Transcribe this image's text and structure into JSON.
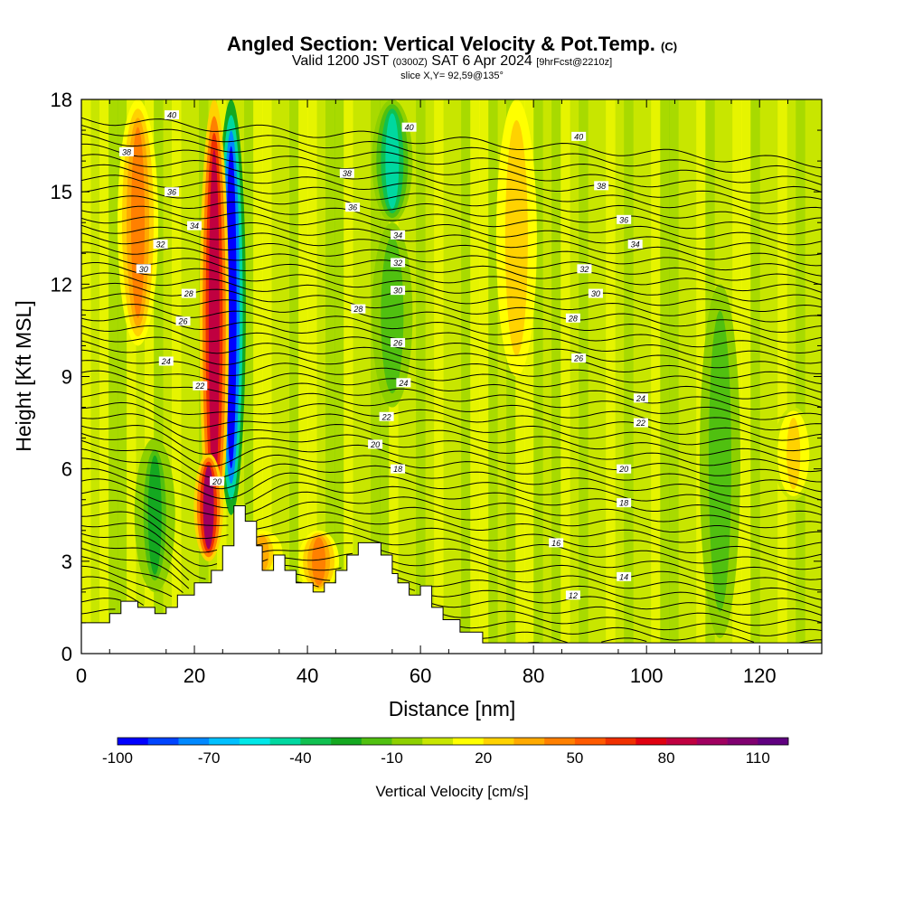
{
  "header": {
    "title_main": "Angled Section: Vertical Velocity & Pot.Temp.",
    "title_mark": "(C)",
    "valid_a": "Valid 1200 JST",
    "valid_b": "(0300Z)",
    "valid_c": "SAT 6 Apr 2024",
    "valid_d": "[9hrFcst@2210z]",
    "slice": "slice X,Y= 92,59@135°"
  },
  "chart_data": {
    "type": "heatmap",
    "xlabel": "Distance [nm]",
    "ylabel": "Height [Kft MSL]",
    "xlim": [
      0,
      131
    ],
    "ylim": [
      0,
      18
    ],
    "x_ticks": [
      0,
      20,
      40,
      60,
      80,
      100,
      120
    ],
    "y_ticks": [
      0,
      3,
      6,
      9,
      12,
      15,
      18
    ],
    "colorbar": {
      "label": "Vertical Velocity [cm/s]",
      "tick_labels": [
        -100,
        -70,
        -40,
        -10,
        20,
        50,
        80,
        110
      ],
      "min": -100,
      "max": 120,
      "step": 10,
      "colors": [
        "#0000ff",
        "#0044ff",
        "#0088ff",
        "#00c0ff",
        "#00e8e8",
        "#00d8a0",
        "#10c050",
        "#14a820",
        "#50c010",
        "#8ed000",
        "#c8e600",
        "#ffff00",
        "#ffd200",
        "#ffaa00",
        "#ff8000",
        "#ff5a00",
        "#f03000",
        "#e00010",
        "#c00040",
        "#a00060",
        "#800070",
        "#600080"
      ]
    },
    "velocity_features": [
      {
        "x": 26.5,
        "z_bottom": 4.5,
        "z_top": 18,
        "w": -100
      },
      {
        "x": 23.5,
        "z_bottom": 3.5,
        "z_top": 18,
        "w": 85
      },
      {
        "x": 22.5,
        "z_bottom": 3,
        "z_top": 6.5,
        "w": 90
      },
      {
        "x": 10,
        "z_bottom": 10,
        "z_top": 18,
        "w": 40
      },
      {
        "x": 55,
        "z_bottom": 14,
        "z_top": 18,
        "w": -45
      },
      {
        "x": 55,
        "z_bottom": 8,
        "z_top": 14,
        "w": -20
      },
      {
        "x": 13,
        "z_bottom": 2,
        "z_top": 7,
        "w": -25
      },
      {
        "x": 42,
        "z_bottom": 2,
        "z_top": 4,
        "w": 45
      },
      {
        "x": 32,
        "z_bottom": 2.5,
        "z_top": 4,
        "w": 30
      },
      {
        "x": 77,
        "z_bottom": 9,
        "z_top": 18,
        "w": 25
      },
      {
        "x": 113,
        "z_bottom": 0.5,
        "z_top": 12,
        "w": -20
      },
      {
        "x": 126,
        "z_bottom": 5,
        "z_top": 8,
        "w": 20
      }
    ],
    "theta_contours": {
      "levels": [
        12,
        14,
        16,
        18,
        20,
        22,
        24,
        26,
        28,
        30,
        32,
        34,
        36,
        38,
        40
      ],
      "labels": [
        {
          "x": 16,
          "z": 17.5,
          "text": "40"
        },
        {
          "x": 58,
          "z": 17.1,
          "text": "40"
        },
        {
          "x": 88,
          "z": 16.8,
          "text": "40"
        },
        {
          "x": 8,
          "z": 16.3,
          "text": "38"
        },
        {
          "x": 47,
          "z": 15.6,
          "text": "38"
        },
        {
          "x": 92,
          "z": 15.2,
          "text": "38"
        },
        {
          "x": 16,
          "z": 15,
          "text": "36"
        },
        {
          "x": 48,
          "z": 14.5,
          "text": "36"
        },
        {
          "x": 96,
          "z": 14.1,
          "text": "36"
        },
        {
          "x": 20,
          "z": 13.9,
          "text": "34"
        },
        {
          "x": 56,
          "z": 13.6,
          "text": "34"
        },
        {
          "x": 98,
          "z": 13.3,
          "text": "34"
        },
        {
          "x": 14,
          "z": 13.3,
          "text": "32"
        },
        {
          "x": 56,
          "z": 12.7,
          "text": "32"
        },
        {
          "x": 89,
          "z": 12.5,
          "text": "32"
        },
        {
          "x": 11,
          "z": 12.5,
          "text": "30"
        },
        {
          "x": 56,
          "z": 11.8,
          "text": "30"
        },
        {
          "x": 91,
          "z": 11.7,
          "text": "30"
        },
        {
          "x": 19,
          "z": 11.7,
          "text": "28"
        },
        {
          "x": 49,
          "z": 11.2,
          "text": "28"
        },
        {
          "x": 87,
          "z": 10.9,
          "text": "28"
        },
        {
          "x": 18,
          "z": 10.8,
          "text": "26"
        },
        {
          "x": 56,
          "z": 10.1,
          "text": "26"
        },
        {
          "x": 88,
          "z": 9.6,
          "text": "26"
        },
        {
          "x": 15,
          "z": 9.5,
          "text": "24"
        },
        {
          "x": 57,
          "z": 8.8,
          "text": "24"
        },
        {
          "x": 99,
          "z": 8.3,
          "text": "24"
        },
        {
          "x": 21,
          "z": 8.7,
          "text": "22"
        },
        {
          "x": 54,
          "z": 7.7,
          "text": "22"
        },
        {
          "x": 99,
          "z": 7.5,
          "text": "22"
        },
        {
          "x": 52,
          "z": 6.8,
          "text": "20"
        },
        {
          "x": 96,
          "z": 6,
          "text": "20"
        },
        {
          "x": 24,
          "z": 5.6,
          "text": "20"
        },
        {
          "x": 56,
          "z": 6,
          "text": "18"
        },
        {
          "x": 96,
          "z": 4.9,
          "text": "18"
        },
        {
          "x": 84,
          "z": 3.6,
          "text": "16"
        },
        {
          "x": 96,
          "z": 2.5,
          "text": "14"
        },
        {
          "x": 87,
          "z": 1.9,
          "text": "12"
        }
      ]
    },
    "terrain": [
      [
        0,
        1
      ],
      [
        5,
        1
      ],
      [
        5,
        1.3
      ],
      [
        7,
        1.3
      ],
      [
        7,
        1.7
      ],
      [
        10,
        1.7
      ],
      [
        10,
        1.5
      ],
      [
        13,
        1.5
      ],
      [
        13,
        1.3
      ],
      [
        15,
        1.3
      ],
      [
        15,
        1.5
      ],
      [
        17,
        1.5
      ],
      [
        17,
        1.9
      ],
      [
        20,
        1.9
      ],
      [
        20,
        2.3
      ],
      [
        23,
        2.3
      ],
      [
        23,
        2.7
      ],
      [
        25,
        2.7
      ],
      [
        25,
        3.5
      ],
      [
        27,
        3.5
      ],
      [
        27,
        4.8
      ],
      [
        29,
        4.8
      ],
      [
        29,
        4.3
      ],
      [
        31,
        4.3
      ],
      [
        31,
        3.5
      ],
      [
        32,
        3.5
      ],
      [
        32,
        2.7
      ],
      [
        34,
        2.7
      ],
      [
        34,
        3.2
      ],
      [
        36,
        3.2
      ],
      [
        36,
        2.7
      ],
      [
        38,
        2.7
      ],
      [
        38,
        2.3
      ],
      [
        41,
        2.3
      ],
      [
        41,
        2
      ],
      [
        43,
        2
      ],
      [
        43,
        2.3
      ],
      [
        45,
        2.3
      ],
      [
        45,
        2.7
      ],
      [
        47,
        2.7
      ],
      [
        47,
        3.2
      ],
      [
        49,
        3.2
      ],
      [
        49,
        3.6
      ],
      [
        53,
        3.6
      ],
      [
        53,
        3.2
      ],
      [
        55,
        3.2
      ],
      [
        55,
        2.6
      ],
      [
        56,
        2.6
      ],
      [
        56,
        2.3
      ],
      [
        58,
        2.3
      ],
      [
        58,
        1.9
      ],
      [
        60,
        1.9
      ],
      [
        60,
        2.2
      ],
      [
        62,
        2.2
      ],
      [
        62,
        1.5
      ],
      [
        64,
        1.5
      ],
      [
        64,
        1.1
      ],
      [
        67,
        1.1
      ],
      [
        67,
        0.7
      ],
      [
        71,
        0.7
      ],
      [
        71,
        0.35
      ],
      [
        131,
        0.35
      ],
      [
        131,
        0
      ]
    ]
  }
}
